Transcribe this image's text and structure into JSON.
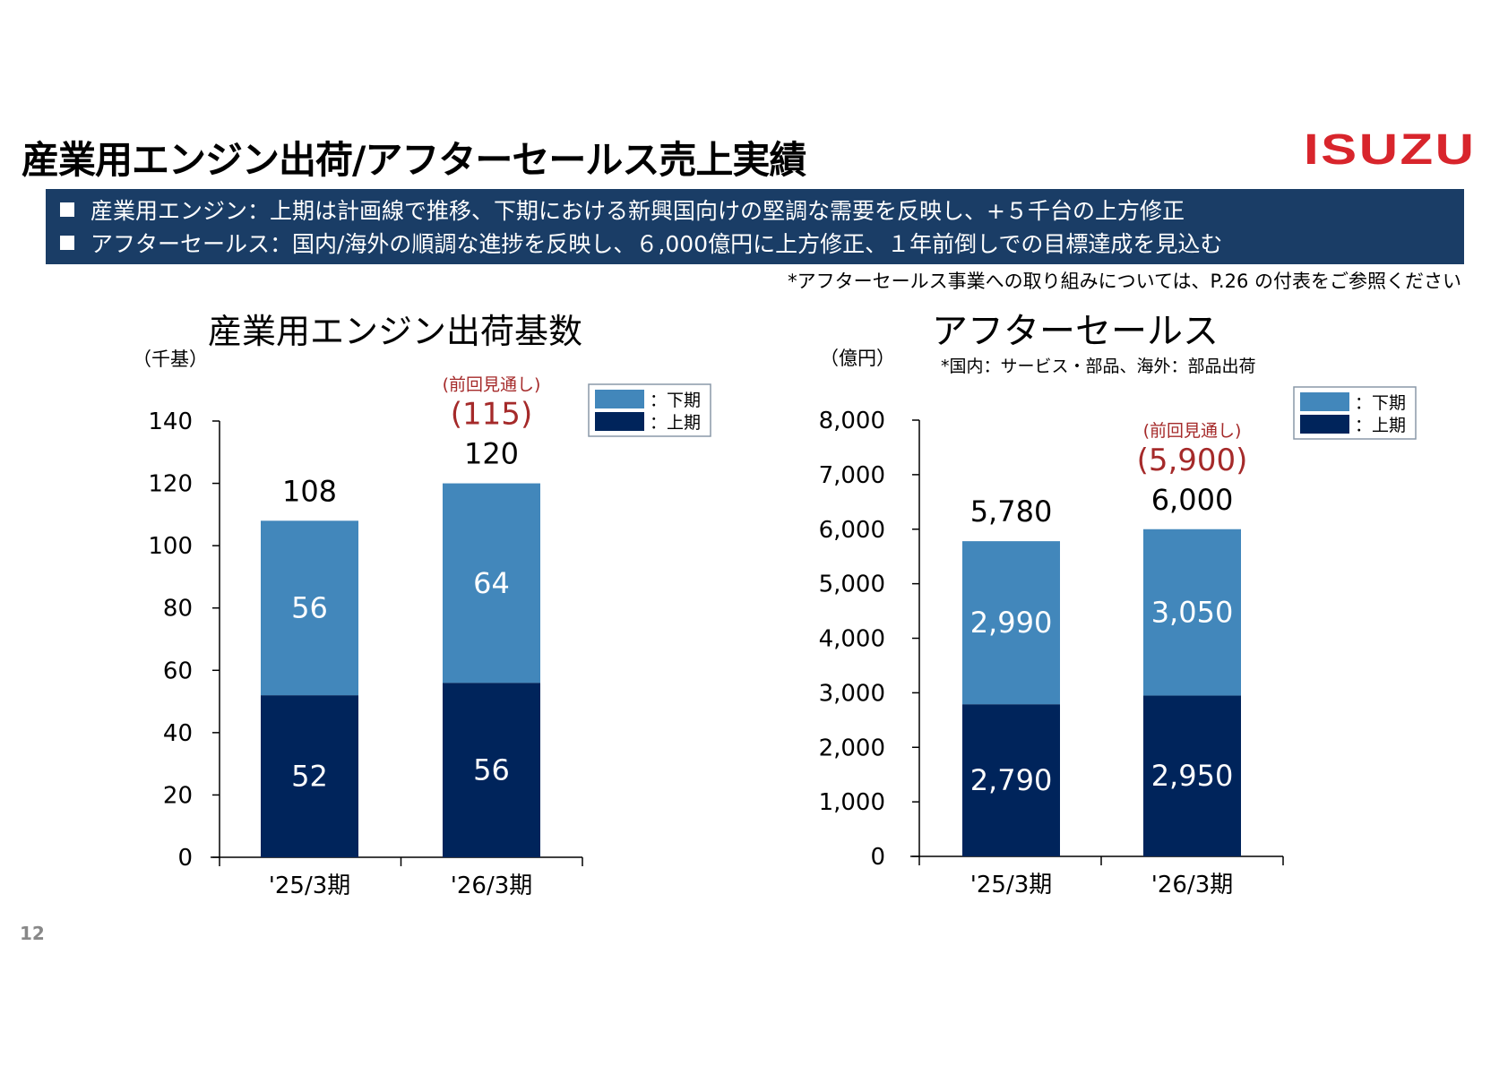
{
  "header": {
    "title": "産業用エンジン出荷/アフターセールス売上実績",
    "logo": "ISUZU"
  },
  "banner": {
    "bullets": [
      "産業用エンジン：上期は計画線で推移、下期における新興国向けの堅調な需要を反映し、+５千台の上方修正",
      "アフターセールス：国内/海外の順調な進捗を反映し、６,000億円に上方修正、１年前倒しでの目標達成を見込む"
    ]
  },
  "footnote": "*アフターセールス事業への取り組みについては、P.26 の付表をご参照ください",
  "page_number": "12",
  "colors": {
    "upper_half": "#4287bb",
    "lower_half": "#00245b",
    "banner": "#1a3d66",
    "prior_forecast": "#a52a2a",
    "logo": "#d8252c"
  },
  "chart_data": [
    {
      "type": "bar",
      "stacked": true,
      "title": "産業用エンジン出荷基数",
      "ylabel": "（千基）",
      "ylim": [
        0,
        140
      ],
      "yticks": [
        "0",
        "20",
        "40",
        "60",
        "80",
        "100",
        "120",
        "140"
      ],
      "categories": [
        "'25/3期",
        "'26/3期"
      ],
      "series": [
        {
          "name": "：上期",
          "values": [
            52,
            56
          ],
          "labels": [
            "52",
            "56"
          ]
        },
        {
          "name": "：下期",
          "values": [
            56,
            64
          ],
          "labels": [
            "56",
            "64"
          ]
        }
      ],
      "totals": [
        "108",
        "120"
      ],
      "prior_forecast": {
        "label": "(前回見通し)",
        "value": "(115)"
      },
      "legend": "top-right",
      "grid": false
    },
    {
      "type": "bar",
      "stacked": true,
      "title": "アフターセールス",
      "subtitle": "*国内：サービス・部品、海外：部品出荷",
      "ylabel": "（億円）",
      "ylim": [
        0,
        8000
      ],
      "yticks": [
        "0",
        "1,000",
        "2,000",
        "3,000",
        "4,000",
        "5,000",
        "6,000",
        "7,000",
        "8,000"
      ],
      "categories": [
        "'25/3期",
        "'26/3期"
      ],
      "series": [
        {
          "name": "：上期",
          "values": [
            2790,
            2950
          ],
          "labels": [
            "2,790",
            "2,950"
          ]
        },
        {
          "name": "：下期",
          "values": [
            2990,
            3050
          ],
          "labels": [
            "2,990",
            "3,050"
          ]
        }
      ],
      "totals": [
        "5,780",
        "6,000"
      ],
      "prior_forecast": {
        "label": "(前回見通し)",
        "value": "(5,900)"
      },
      "legend": "top-right",
      "grid": false
    }
  ]
}
